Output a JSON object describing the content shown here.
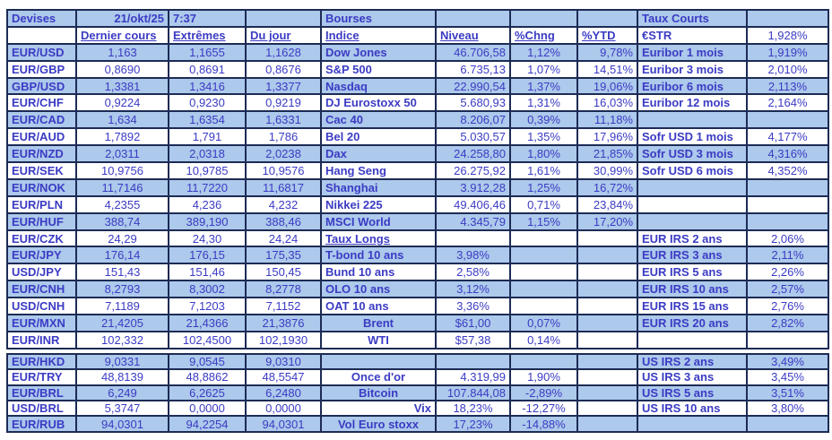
{
  "colors": {
    "fill": "#ADC9EB",
    "text": "#3B3BC4",
    "border": "#1C2B55"
  },
  "devises": {
    "title": "Devises",
    "date": "21/okt/25",
    "time": "7:37",
    "columns": [
      "Dernier cours",
      "Extrêmes",
      "Du jour"
    ],
    "rows": [
      {
        "pair": "EUR/USD",
        "last": "1,163",
        "extreme": "1,1655",
        "day": "1,1628"
      },
      {
        "pair": "EUR/GBP",
        "last": "0,8690",
        "extreme": "0,8691",
        "day": "0,8676"
      },
      {
        "pair": "GBP/USD",
        "last": "1,3381",
        "extreme": "1,3416",
        "day": "1,3377"
      },
      {
        "pair": "EUR/CHF",
        "last": "0,9224",
        "extreme": "0,9230",
        "day": "0,9219"
      },
      {
        "pair": "EUR/CAD",
        "last": "1,634",
        "extreme": "1,6354",
        "day": "1,6331"
      },
      {
        "pair": "EUR/AUD",
        "last": "1,7892",
        "extreme": "1,791",
        "day": "1,786"
      },
      {
        "pair": "EUR/NZD",
        "last": "2,0311",
        "extreme": "2,0318",
        "day": "2,0238"
      },
      {
        "pair": "EUR/SEK",
        "last": "10,9756",
        "extreme": "10,9785",
        "day": "10,9576"
      },
      {
        "pair": "EUR/NOK",
        "last": "11,7146",
        "extreme": "11,7220",
        "day": "11,6817"
      },
      {
        "pair": "EUR/PLN",
        "last": "4,2355",
        "extreme": "4,236",
        "day": "4,232"
      },
      {
        "pair": "EUR/HUF",
        "last": "388,74",
        "extreme": "389,190",
        "day": "388,46"
      },
      {
        "pair": "EUR/CZK",
        "last": "24,29",
        "extreme": "24,30",
        "day": "24,24"
      },
      {
        "pair": "EUR/JPY",
        "last": "176,14",
        "extreme": "176,15",
        "day": "175,35"
      },
      {
        "pair": "USD/JPY",
        "last": "151,43",
        "extreme": "151,46",
        "day": "150,45"
      },
      {
        "pair": "EUR/CNH",
        "last": "8,2793",
        "extreme": "8,3002",
        "day": "8,2778"
      },
      {
        "pair": "USD/CNH",
        "last": "7,1189",
        "extreme": "7,1203",
        "day": "7,1152"
      },
      {
        "pair": "EUR/MXN",
        "last": "21,4205",
        "extreme": "21,4366",
        "day": "21,3876"
      },
      {
        "pair": "EUR/INR",
        "last": "102,332",
        "extreme": "102,4500",
        "day": "102,1930"
      }
    ],
    "rows_block2": [
      {
        "pair": "EUR/HKD",
        "last": "9,0331",
        "extreme": "9,0545",
        "day": "9,0310"
      },
      {
        "pair": "EUR/TRY",
        "last": "48,8139",
        "extreme": "48,8862",
        "day": "48,5547"
      },
      {
        "pair": "EUR/BRL",
        "last": "6,249",
        "extreme": "6,2625",
        "day": "6,2480"
      },
      {
        "pair": "USD/BRL",
        "last": "5,3747",
        "extreme": "0,0000",
        "day": "0,0000"
      },
      {
        "pair": "EUR/RUB",
        "last": "94,0301",
        "extreme": "94,2254",
        "day": "94,0301"
      }
    ]
  },
  "bourses": {
    "title": "Bourses",
    "columns": [
      "Indice",
      "Niveau",
      "%Chng",
      "%YTD"
    ],
    "indices": [
      {
        "name": "Dow Jones",
        "level": "46.706,58",
        "chng": "1,12%",
        "ytd": "9,78%"
      },
      {
        "name": "S&P 500",
        "level": "6.735,13",
        "chng": "1,07%",
        "ytd": "14,51%"
      },
      {
        "name": "Nasdaq",
        "level": "22.990,54",
        "chng": "1,37%",
        "ytd": "19,06%"
      },
      {
        "name": "DJ Eurostoxx 50",
        "level": "5.680,93",
        "chng": "1,31%",
        "ytd": "16,03%"
      },
      {
        "name": "Cac 40",
        "level": "8.206,07",
        "chng": "0,39%",
        "ytd": "11,18%"
      },
      {
        "name": "Bel 20",
        "level": "5.030,57",
        "chng": "1,35%",
        "ytd": "17,96%"
      },
      {
        "name": "Dax",
        "level": "24.258,80",
        "chng": "1,80%",
        "ytd": "21,85%"
      },
      {
        "name": "Hang Seng",
        "level": "26.275,92",
        "chng": "1,61%",
        "ytd": "30,99%"
      },
      {
        "name": "Shanghai",
        "level": "3.912,28",
        "chng": "1,25%",
        "ytd": "16,72%"
      },
      {
        "name": "Nikkei 225",
        "level": "49.406,46",
        "chng": "0,71%",
        "ytd": "23,84%"
      },
      {
        "name": "MSCI World",
        "level": "4.345,79",
        "chng": "1,15%",
        "ytd": "17,20%"
      }
    ],
    "taux_longs_title": "Taux Longs",
    "taux_longs": [
      {
        "name": "T-bond 10 ans",
        "value": "3,98%"
      },
      {
        "name": "Bund 10 ans",
        "value": "2,58%"
      },
      {
        "name": "OLO 10 ans",
        "value": "3,12%"
      },
      {
        "name": "OAT 10 ans",
        "value": "3,36%"
      }
    ],
    "energy": [
      {
        "name": "Brent",
        "value": "$61,00",
        "chng": "0,07%"
      },
      {
        "name": "WTI",
        "value": "$57,38",
        "chng": "0,14%"
      }
    ],
    "autres": [
      {
        "name": "Once d'or",
        "value": "4.319,99",
        "chng": "1,90%"
      },
      {
        "name": "Bitcoin",
        "value": "107.844,08",
        "chng": "-2,89%"
      },
      {
        "name": "Vix",
        "value": "18,23%",
        "chng": "-12,27%"
      },
      {
        "name": "Vol Euro stoxx",
        "value": "17,23%",
        "chng": "-14,88%"
      }
    ]
  },
  "taux_courts": {
    "title": "Taux Courts",
    "estr": {
      "label": "€STR",
      "value": "1,928%"
    },
    "euribor": [
      {
        "label": "Euribor 1 mois",
        "value": "1,919%"
      },
      {
        "label": "Euribor 3 mois",
        "value": "2,010%"
      },
      {
        "label": "Euribor 6 mois",
        "value": "2,113%"
      },
      {
        "label": "Euribor 12 mois",
        "value": "2,164%"
      }
    ],
    "sofr": [
      {
        "label": "Sofr USD 1 mois",
        "value": "4,177%"
      },
      {
        "label": "Sofr USD 3 mois",
        "value": "4,316%"
      },
      {
        "label": "Sofr USD 6 mois",
        "value": "4,352%"
      }
    ],
    "eur_irs": [
      {
        "label": "EUR IRS 2 ans",
        "value": "2,06%"
      },
      {
        "label": "EUR IRS 3 ans",
        "value": "2,11%"
      },
      {
        "label": "EUR IRS 5 ans",
        "value": "2,26%"
      },
      {
        "label": "EUR IRS 10 ans",
        "value": "2,57%"
      },
      {
        "label": "EUR IRS 15 ans",
        "value": "2,76%"
      },
      {
        "label": "EUR IRS 20 ans",
        "value": "2,82%"
      }
    ],
    "us_irs": [
      {
        "label": "US IRS 2 ans",
        "value": "3,49%"
      },
      {
        "label": "US IRS 3 ans",
        "value": "3,45%"
      },
      {
        "label": "US IRS 5 ans",
        "value": "3,51%"
      },
      {
        "label": "US IRS 10 ans",
        "value": "3,80%"
      }
    ]
  }
}
